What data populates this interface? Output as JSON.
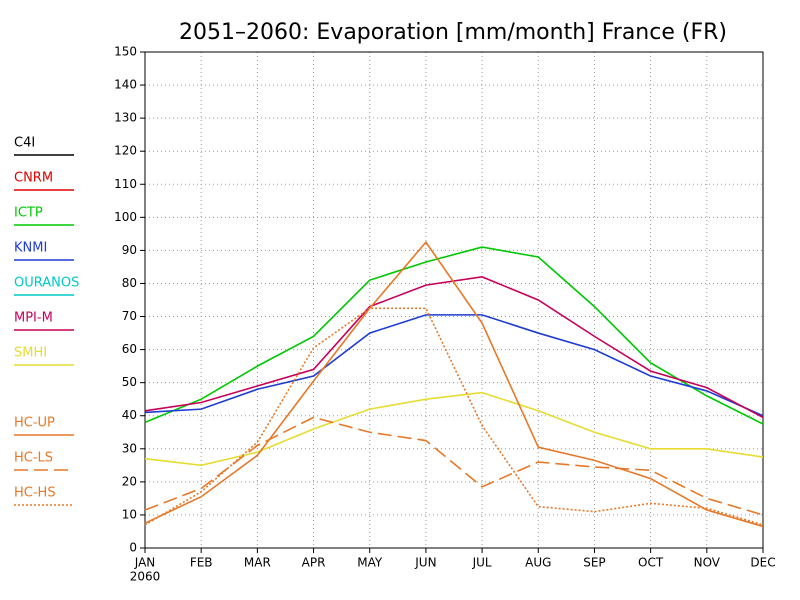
{
  "chart_data": {
    "type": "line",
    "title": "2051–2060: Evaporation [mm/month] France (FR)",
    "categories": [
      "JAN",
      "FEB",
      "MAR",
      "APR",
      "MAY",
      "JUN",
      "JUL",
      "AUG",
      "SEP",
      "OCT",
      "NOV",
      "DEC"
    ],
    "year_label": "2060",
    "ylim": [
      0,
      150
    ],
    "yticks": [
      0,
      10,
      20,
      30,
      40,
      50,
      60,
      70,
      80,
      90,
      100,
      110,
      120,
      130,
      140,
      150
    ],
    "grid": true,
    "legend": "left",
    "series": [
      {
        "name": "C4I",
        "color": "#000000",
        "dash": "solid",
        "values": [
          null,
          null,
          null,
          null,
          null,
          null,
          null,
          null,
          null,
          null,
          null,
          null
        ]
      },
      {
        "name": "CNRM",
        "color": "#e00000",
        "dash": "solid",
        "values": [
          null,
          null,
          null,
          null,
          null,
          null,
          null,
          null,
          null,
          null,
          null,
          null
        ]
      },
      {
        "name": "ICTP",
        "color": "#00c800",
        "dash": "solid",
        "values": [
          38,
          45,
          55,
          64,
          81,
          86.5,
          91,
          88,
          73,
          56,
          46,
          37.5
        ]
      },
      {
        "name": "KNMI",
        "color": "#1e3cd2",
        "dash": "solid",
        "values": [
          41,
          42,
          48,
          52,
          65,
          70.5,
          70.5,
          65,
          60,
          52,
          47.5,
          40
        ]
      },
      {
        "name": "OURANOS",
        "color": "#00c8c8",
        "dash": "solid",
        "values": [
          null,
          null,
          null,
          null,
          null,
          null,
          null,
          null,
          null,
          null,
          null,
          null
        ]
      },
      {
        "name": "MPI-M",
        "color": "#c8005a",
        "dash": "solid",
        "values": [
          41.5,
          44,
          49,
          54,
          73,
          79.5,
          82,
          75,
          64,
          53.5,
          48.5,
          39.5
        ]
      },
      {
        "name": "SMHI",
        "color": "#e6dc32",
        "dash": "solid",
        "values": [
          27,
          25,
          29,
          36,
          42,
          45,
          47,
          41.5,
          35,
          30,
          30,
          27.5
        ]
      },
      {
        "name": "HC-UP",
        "color": "#e67828",
        "dash": "solid",
        "values": [
          7.5,
          15.5,
          28,
          50.5,
          72.5,
          92.5,
          68,
          30.5,
          26.5,
          21,
          11.5,
          6.5
        ]
      },
      {
        "name": "HC-LS",
        "color": "#e67828",
        "dash": "dashed",
        "values": [
          11.5,
          18,
          31,
          39.5,
          35,
          32.5,
          18.5,
          26,
          24.5,
          23.5,
          15,
          10
        ]
      },
      {
        "name": "HC-HS",
        "color": "#e67828",
        "dash": "dotted",
        "values": [
          7,
          17,
          32,
          60.5,
          72.5,
          72.5,
          37,
          12.5,
          11,
          13.5,
          12,
          7
        ]
      }
    ]
  }
}
